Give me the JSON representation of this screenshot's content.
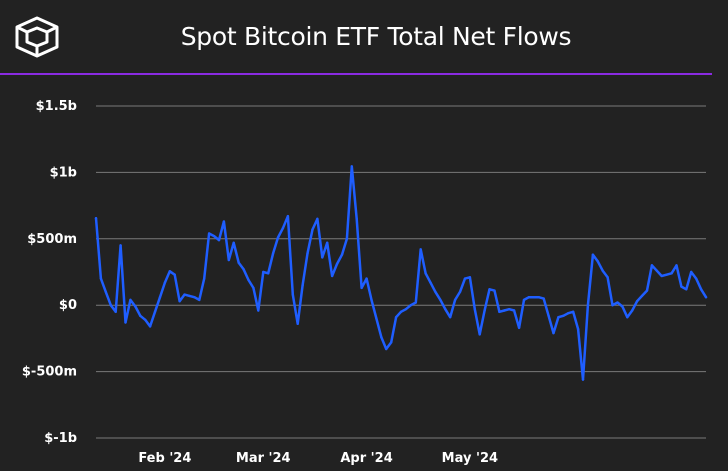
{
  "header": {
    "title": "Spot Bitcoin ETF Total Net Flows",
    "logo_icon": "cube-icon"
  },
  "colors": {
    "background": "#222222",
    "accent": "#8a2be2",
    "series": "#1f5eff",
    "grid": "#7a7a7a",
    "text": "#ffffff"
  },
  "chart_data": {
    "type": "line",
    "title": "Spot Bitcoin ETF Total Net Flows",
    "xlabel": "",
    "ylabel": "",
    "ylim": [
      -1000,
      1500
    ],
    "y_ticks": [
      {
        "value": 1500,
        "label": "$1.5b"
      },
      {
        "value": 1000,
        "label": "$1b"
      },
      {
        "value": 500,
        "label": "$500m"
      },
      {
        "value": 0,
        "label": "$0"
      },
      {
        "value": -500,
        "label": "$-500m"
      },
      {
        "value": -1000,
        "label": "$-1b"
      }
    ],
    "x_ticks": [
      {
        "index": 14,
        "label": "Feb '24"
      },
      {
        "index": 34,
        "label": "Mar '24"
      },
      {
        "index": 55,
        "label": "Apr '24"
      },
      {
        "index": 76,
        "label": "May '24"
      }
    ],
    "grid": true,
    "legend": "none",
    "series": [
      {
        "name": "Total Net Flows",
        "values": [
          655,
          200,
          100,
          0,
          -50,
          450,
          -130,
          40,
          -10,
          -80,
          -110,
          -160,
          -50,
          60,
          170,
          255,
          230,
          30,
          80,
          70,
          60,
          40,
          200,
          540,
          520,
          490,
          630,
          340,
          470,
          320,
          270,
          190,
          130,
          -40,
          250,
          240,
          390,
          510,
          580,
          670,
          80,
          -140,
          150,
          390,
          570,
          650,
          360,
          470,
          220,
          310,
          380,
          500,
          1045,
          650,
          130,
          200,
          40,
          -100,
          -240,
          -330,
          -280,
          -90,
          -50,
          -30,
          0,
          20,
          420,
          240,
          170,
          100,
          40,
          -30,
          -90,
          40,
          100,
          200,
          210,
          -30,
          -220,
          -40,
          120,
          110,
          -50,
          -40,
          -30,
          -40,
          -170,
          40,
          60,
          60,
          60,
          50,
          -80,
          -210,
          -90,
          -80,
          -60,
          -50,
          -180,
          -560,
          0,
          380,
          330,
          260,
          210,
          0,
          20,
          -10,
          -90,
          -40,
          30,
          70,
          110,
          300,
          260,
          220,
          230,
          240,
          300,
          140,
          120,
          250,
          200,
          120,
          60
        ]
      }
    ]
  }
}
